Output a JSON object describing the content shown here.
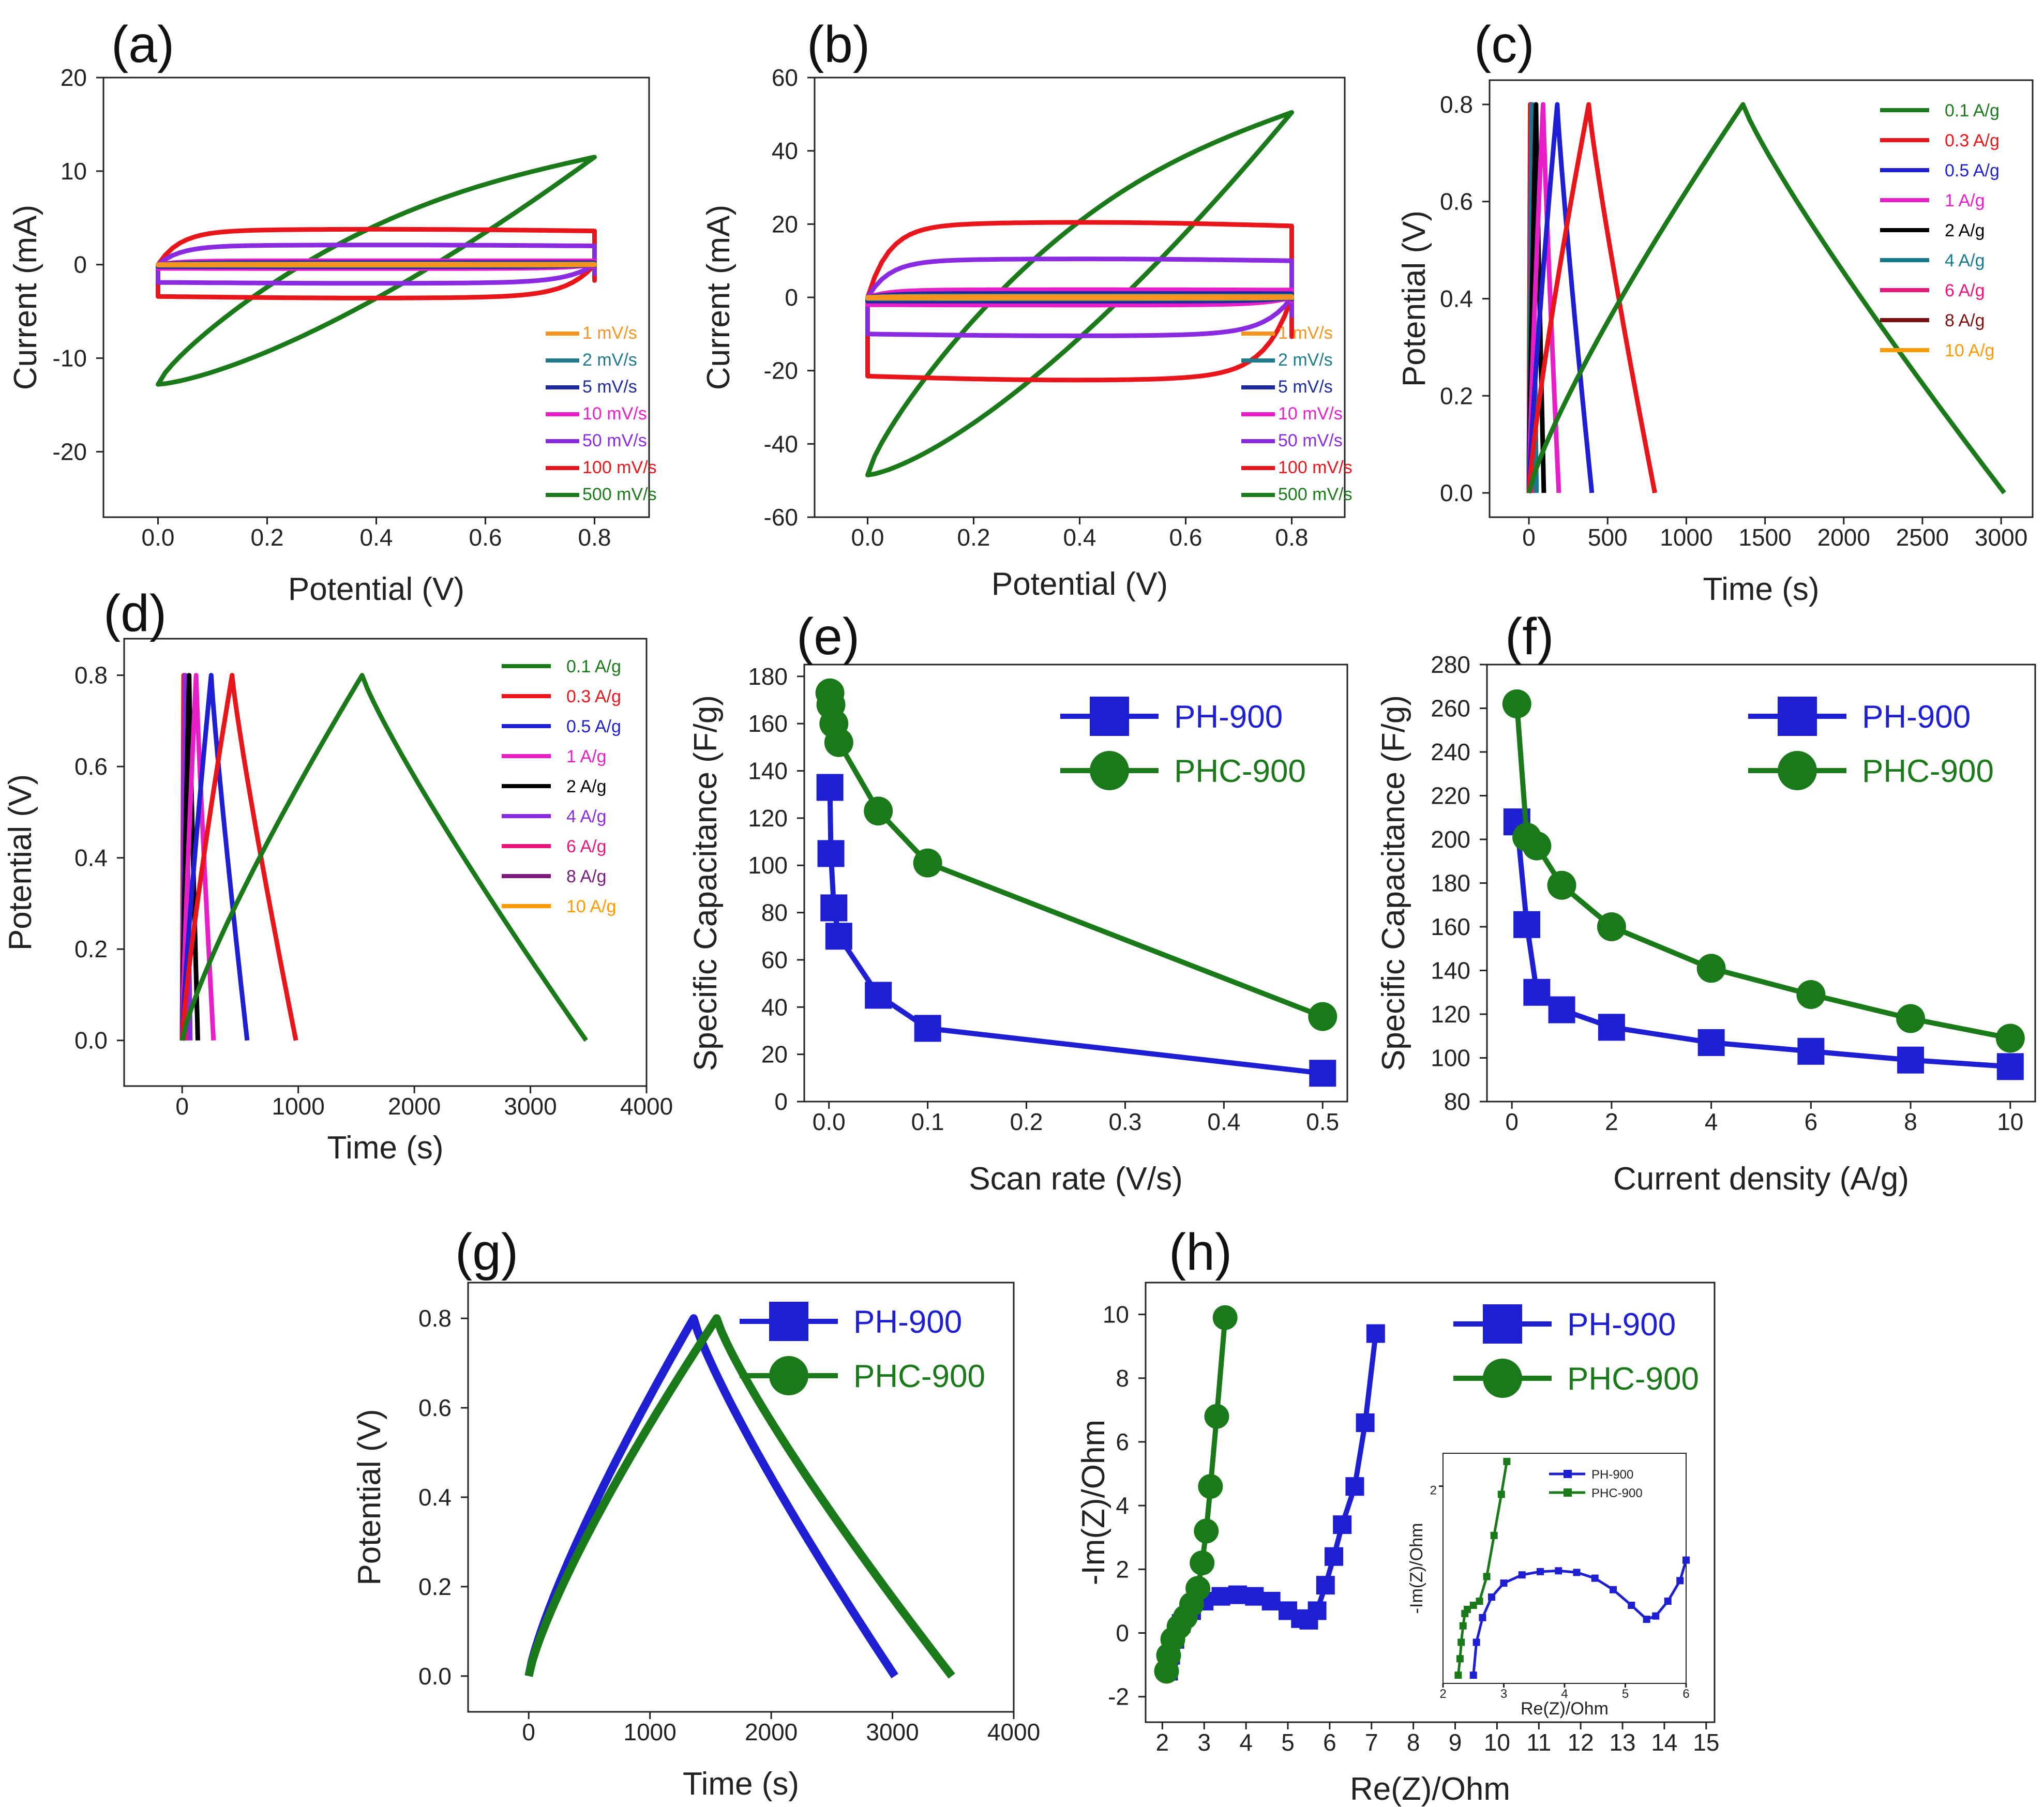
{
  "colors": {
    "orange": "#f7931e",
    "teal": "#1f7a8c",
    "navy": "#1b2a9e",
    "magenta": "#e81fc9",
    "purple": "#8a2be2",
    "red": "#e8151b",
    "green": "#1a7a1a",
    "black": "#000000",
    "darkred": "#7a1010",
    "blue": "#1e1ed2",
    "pink": "#e8157a",
    "darkpurple": "#7a1a7a",
    "gold": "#ff9900",
    "cyan": "#167a8c"
  },
  "chart_data": [
    {
      "id": "a",
      "label": "(a)",
      "type": "line",
      "xlabel": "Potential (V)",
      "ylabel": "Current (mA)",
      "xlim": [
        -0.1,
        0.9
      ],
      "ylim": [
        -27,
        20
      ],
      "xticks": [
        0.0,
        0.2,
        0.4,
        0.6,
        0.8
      ],
      "xtick_labels": [
        "0.0",
        "0.2",
        "0.4",
        "0.6",
        "0.8"
      ],
      "yticks": [
        -20,
        -10,
        0,
        10,
        20
      ],
      "ytick_labels": [
        "-20",
        "-10",
        "0",
        "10",
        "20"
      ],
      "series": [
        {
          "name": "1 mV/s",
          "color": "#f7931e",
          "ip": 0.04,
          "in": -0.04,
          "i0": 0.03
        },
        {
          "name": "2 mV/s",
          "color": "#1f7a8c",
          "ip": 0.08,
          "in": -0.08,
          "i0": 0.06
        },
        {
          "name": "5 mV/s",
          "color": "#1b2a9e",
          "ip": 0.2,
          "in": -0.2,
          "i0": 0.15
        },
        {
          "name": "10 mV/s",
          "color": "#e81fc9",
          "ip": 0.4,
          "in": -0.4,
          "i0": 0.3
        },
        {
          "name": "50 mV/s",
          "color": "#8a2be2",
          "ip": 2.0,
          "in": -1.9,
          "i0": 1.5
        },
        {
          "name": "100 mV/s",
          "color": "#e8151b",
          "ip": 3.6,
          "in": -3.4,
          "i0": 2.8
        },
        {
          "name": "500 mV/s",
          "color": "#1a7a1a",
          "ip": 11.5,
          "in": -12.8,
          "i0": 0
        }
      ]
    },
    {
      "id": "b",
      "label": "(b)",
      "type": "line",
      "xlabel": "Potential (V)",
      "ylabel": "Current (mA)",
      "xlim": [
        -0.1,
        0.9
      ],
      "ylim": [
        -60,
        60
      ],
      "xticks": [
        0.0,
        0.2,
        0.4,
        0.6,
        0.8
      ],
      "xtick_labels": [
        "0.0",
        "0.2",
        "0.4",
        "0.6",
        "0.8"
      ],
      "yticks": [
        -60,
        -40,
        -20,
        0,
        20,
        40,
        60
      ],
      "ytick_labels": [
        "-60",
        "-40",
        "-20",
        "0",
        "20",
        "40",
        "60"
      ],
      "series": [
        {
          "name": "1 mV/s",
          "color": "#f7931e",
          "ip": 0.2,
          "in": -0.2,
          "i0": 0.2
        },
        {
          "name": "2 mV/s",
          "color": "#1f7a8c",
          "ip": 0.4,
          "in": -0.4,
          "i0": 0.3
        },
        {
          "name": "5 mV/s",
          "color": "#1b2a9e",
          "ip": 1.0,
          "in": -1.0,
          "i0": 0.8
        },
        {
          "name": "10 mV/s",
          "color": "#e81fc9",
          "ip": 2.0,
          "in": -2.0,
          "i0": 1.6
        },
        {
          "name": "50 mV/s",
          "color": "#8a2be2",
          "ip": 10.0,
          "in": -10.0,
          "i0": 8
        },
        {
          "name": "100 mV/s",
          "color": "#e8151b",
          "ip": 19.5,
          "in": -21.5,
          "i0": 15
        },
        {
          "name": "500 mV/s",
          "color": "#1a7a1a",
          "ip": 50.5,
          "in": -48.5,
          "i0": 0
        }
      ]
    },
    {
      "id": "c",
      "label": "(c)",
      "type": "line",
      "xlabel": "Time (s)",
      "ylabel": "Potential (V)",
      "xlim": [
        -250,
        3200
      ],
      "ylim": [
        -0.05,
        0.85
      ],
      "xticks": [
        0,
        500,
        1000,
        1500,
        2000,
        2500,
        3000
      ],
      "xtick_labels": [
        "0",
        "500",
        "1000",
        "1500",
        "2000",
        "2500",
        "3000"
      ],
      "yticks": [
        0.0,
        0.2,
        0.4,
        0.6,
        0.8
      ],
      "ytick_labels": [
        "0.0",
        "0.2",
        "0.4",
        "0.6",
        "0.8"
      ],
      "series": [
        {
          "name": "0.1 A/g",
          "color": "#1a7a1a",
          "tc": 1360,
          "td": 3020
        },
        {
          "name": "0.3 A/g",
          "color": "#e8151b",
          "tc": 380,
          "td": 800
        },
        {
          "name": "0.5 A/g",
          "color": "#1e1ed2",
          "tc": 180,
          "td": 400
        },
        {
          "name": "1 A/g",
          "color": "#e81fc9",
          "tc": 90,
          "td": 190
        },
        {
          "name": "2 A/g",
          "color": "#000000",
          "tc": 45,
          "td": 95
        },
        {
          "name": "4 A/g",
          "color": "#167a8c",
          "tc": 22,
          "td": 48
        },
        {
          "name": "6 A/g",
          "color": "#e8157a",
          "tc": 14,
          "td": 32
        },
        {
          "name": "8 A/g",
          "color": "#7a1010",
          "tc": 10,
          "td": 23
        },
        {
          "name": "10 A/g",
          "color": "#ff9900",
          "tc": 8,
          "td": 18
        }
      ]
    },
    {
      "id": "d",
      "label": "(d)",
      "type": "line",
      "xlabel": "Time (s)",
      "ylabel": "Potential (V)",
      "xlim": [
        -500,
        4000
      ],
      "ylim": [
        -0.1,
        0.88
      ],
      "xticks": [
        0,
        1000,
        2000,
        3000,
        4000
      ],
      "xtick_labels": [
        "0",
        "1000",
        "2000",
        "3000",
        "4000"
      ],
      "yticks": [
        0.0,
        0.2,
        0.4,
        0.6,
        0.8
      ],
      "ytick_labels": [
        "0.0",
        "0.2",
        "0.4",
        "0.6",
        "0.8"
      ],
      "series": [
        {
          "name": "0.1 A/g",
          "color": "#1a7a1a",
          "tc": 1550,
          "td": 3480
        },
        {
          "name": "0.3 A/g",
          "color": "#e8151b",
          "tc": 430,
          "td": 980
        },
        {
          "name": "0.5 A/g",
          "color": "#1e1ed2",
          "tc": 250,
          "td": 560
        },
        {
          "name": "1 A/g",
          "color": "#e81fc9",
          "tc": 120,
          "td": 270
        },
        {
          "name": "2 A/g",
          "color": "#000000",
          "tc": 60,
          "td": 135
        },
        {
          "name": "4 A/g",
          "color": "#8a2be2",
          "tc": 30,
          "td": 70
        },
        {
          "name": "6 A/g",
          "color": "#e8157a",
          "tc": 20,
          "td": 47
        },
        {
          "name": "8 A/g",
          "color": "#7a1a7a",
          "tc": 15,
          "td": 35
        },
        {
          "name": "10 A/g",
          "color": "#ff9900",
          "tc": 12,
          "td": 28
        }
      ]
    },
    {
      "id": "e",
      "label": "(e)",
      "type": "scatter",
      "xlabel": "Scan rate (V/s)",
      "ylabel": "Specific Capacitance (F/g)",
      "xlim": [
        -0.025,
        0.525
      ],
      "ylim": [
        0,
        185
      ],
      "xticks": [
        0.0,
        0.1,
        0.2,
        0.3,
        0.4,
        0.5
      ],
      "xtick_labels": [
        "0.0",
        "0.1",
        "0.2",
        "0.3",
        "0.4",
        "0.5"
      ],
      "yticks": [
        0,
        20,
        40,
        60,
        80,
        100,
        120,
        140,
        160,
        180
      ],
      "ytick_labels": [
        "0",
        "20",
        "40",
        "60",
        "80",
        "100",
        "120",
        "140",
        "160",
        "180"
      ],
      "series": [
        {
          "name": "PH-900",
          "color": "#1e1ed2",
          "marker": "square",
          "x": [
            0.001,
            0.002,
            0.005,
            0.01,
            0.05,
            0.1,
            0.5
          ],
          "y": [
            133,
            105,
            82,
            70,
            45,
            31,
            12
          ]
        },
        {
          "name": "PHC-900",
          "color": "#1a7a1a",
          "marker": "circle",
          "x": [
            0.001,
            0.002,
            0.005,
            0.01,
            0.05,
            0.1,
            0.5
          ],
          "y": [
            173,
            168,
            160,
            152,
            123,
            101,
            36
          ]
        }
      ]
    },
    {
      "id": "f",
      "label": "(f)",
      "type": "scatter",
      "xlabel": "Current density (A/g)",
      "ylabel": "Specific Capacitance (F/g)",
      "xlim": [
        -0.5,
        10.5
      ],
      "ylim": [
        80,
        280
      ],
      "xticks": [
        0,
        2,
        4,
        6,
        8,
        10
      ],
      "xtick_labels": [
        "0",
        "2",
        "4",
        "6",
        "8",
        "10"
      ],
      "yticks": [
        80,
        100,
        120,
        140,
        160,
        180,
        200,
        220,
        240,
        260,
        280
      ],
      "ytick_labels": [
        "80",
        "100",
        "120",
        "140",
        "160",
        "180",
        "200",
        "220",
        "240",
        "260",
        "280"
      ],
      "series": [
        {
          "name": "PH-900",
          "color": "#1e1ed2",
          "marker": "square",
          "x": [
            0.1,
            0.3,
            0.5,
            1,
            2,
            4,
            6,
            8,
            10
          ],
          "y": [
            208,
            161,
            130,
            122,
            114,
            107,
            103,
            99,
            96
          ]
        },
        {
          "name": "PHC-900",
          "color": "#1a7a1a",
          "marker": "circle",
          "x": [
            0.1,
            0.3,
            0.5,
            1,
            2,
            4,
            6,
            8,
            10
          ],
          "y": [
            262,
            201,
            197,
            179,
            160,
            141,
            129,
            118,
            109
          ]
        }
      ]
    },
    {
      "id": "g",
      "label": "(g)",
      "type": "line",
      "xlabel": "Time (s)",
      "ylabel": "Potential (V)",
      "xlim": [
        -500,
        4000
      ],
      "ylim": [
        -0.08,
        0.88
      ],
      "xticks": [
        0,
        1000,
        2000,
        3000,
        4000
      ],
      "xtick_labels": [
        "0",
        "1000",
        "2000",
        "3000",
        "4000"
      ],
      "yticks": [
        0.0,
        0.2,
        0.4,
        0.6,
        0.8
      ],
      "ytick_labels": [
        "0.0",
        "0.2",
        "0.4",
        "0.6",
        "0.8"
      ],
      "series": [
        {
          "name": "PH-900",
          "color": "#1e1ed2",
          "marker": "square",
          "tc": 1360,
          "td": 3020
        },
        {
          "name": "PHC-900",
          "color": "#1a7a1a",
          "marker": "circle",
          "tc": 1550,
          "td": 3490
        }
      ]
    },
    {
      "id": "h",
      "label": "(h)",
      "type": "line",
      "xlabel": "Re(Z)/Ohm",
      "ylabel": "-Im(Z)/Ohm",
      "xlim": [
        1.6,
        15.2
      ],
      "ylim": [
        -2.8,
        11
      ],
      "xticks": [
        2,
        3,
        4,
        5,
        6,
        7,
        8,
        9,
        10,
        11,
        12,
        13,
        14,
        15
      ],
      "xtick_labels": [
        "2",
        "3",
        "4",
        "5",
        "6",
        "7",
        "8",
        "9",
        "10",
        "11",
        "12",
        "13",
        "14",
        "15"
      ],
      "yticks": [
        -2,
        0,
        2,
        4,
        6,
        8,
        10
      ],
      "ytick_labels": [
        "-2",
        "0",
        "2",
        "4",
        "6",
        "8",
        "10"
      ],
      "series": [
        {
          "name": "PH-900",
          "color": "#1e1ed2",
          "marker": "square",
          "x": [
            2.15,
            2.2,
            2.3,
            2.45,
            2.7,
            3.0,
            3.4,
            3.8,
            4.2,
            4.6,
            5.0,
            5.3,
            5.5,
            5.7,
            5.9,
            6.1,
            6.3,
            6.6,
            6.85,
            7.1
          ],
          "y": [
            -1.2,
            -0.7,
            -0.2,
            0.3,
            0.7,
            1.0,
            1.15,
            1.2,
            1.15,
            1.0,
            0.7,
            0.45,
            0.4,
            0.7,
            1.5,
            2.4,
            3.4,
            4.6,
            6.6,
            9.4
          ]
        },
        {
          "name": "PHC-900",
          "color": "#1a7a1a",
          "marker": "circle",
          "x": [
            2.1,
            2.15,
            2.25,
            2.4,
            2.55,
            2.7,
            2.85,
            2.95,
            3.05,
            3.15,
            3.3,
            3.5
          ],
          "y": [
            -1.2,
            -0.7,
            -0.2,
            0.2,
            0.5,
            0.9,
            1.4,
            2.2,
            3.2,
            4.6,
            6.8,
            9.9
          ]
        }
      ]
    },
    {
      "id": "h_inset",
      "type": "line",
      "xlabel": "Re(Z)/Ohm",
      "ylabel": "-Im(Z)/Ohm",
      "xlim": [
        2,
        6
      ],
      "ylim": [
        -0.4,
        2.4
      ],
      "xticks": [
        2,
        3,
        4,
        5,
        6
      ],
      "xtick_labels": [
        "2",
        "3",
        "4",
        "5",
        "6"
      ],
      "yticks": [
        2
      ],
      "ytick_labels": [
        "2"
      ],
      "series": [
        {
          "name": "PH-900",
          "color": "#1e1ed2",
          "marker": "square",
          "x": [
            2.5,
            2.55,
            2.65,
            2.8,
            3.0,
            3.3,
            3.6,
            3.9,
            4.2,
            4.5,
            4.8,
            5.1,
            5.35,
            5.5,
            5.7,
            5.9,
            6.0
          ],
          "y": [
            -0.3,
            0.1,
            0.4,
            0.65,
            0.82,
            0.92,
            0.96,
            0.97,
            0.95,
            0.88,
            0.74,
            0.55,
            0.38,
            0.42,
            0.6,
            0.85,
            1.1
          ]
        },
        {
          "name": "PHC-900",
          "color": "#1a7a1a",
          "marker": "square",
          "x": [
            2.25,
            2.28,
            2.3,
            2.33,
            2.36,
            2.4,
            2.5,
            2.6,
            2.72,
            2.84,
            2.96,
            3.05
          ],
          "y": [
            -0.3,
            -0.1,
            0.1,
            0.3,
            0.45,
            0.5,
            0.55,
            0.6,
            0.9,
            1.4,
            1.9,
            2.3
          ]
        }
      ]
    }
  ]
}
